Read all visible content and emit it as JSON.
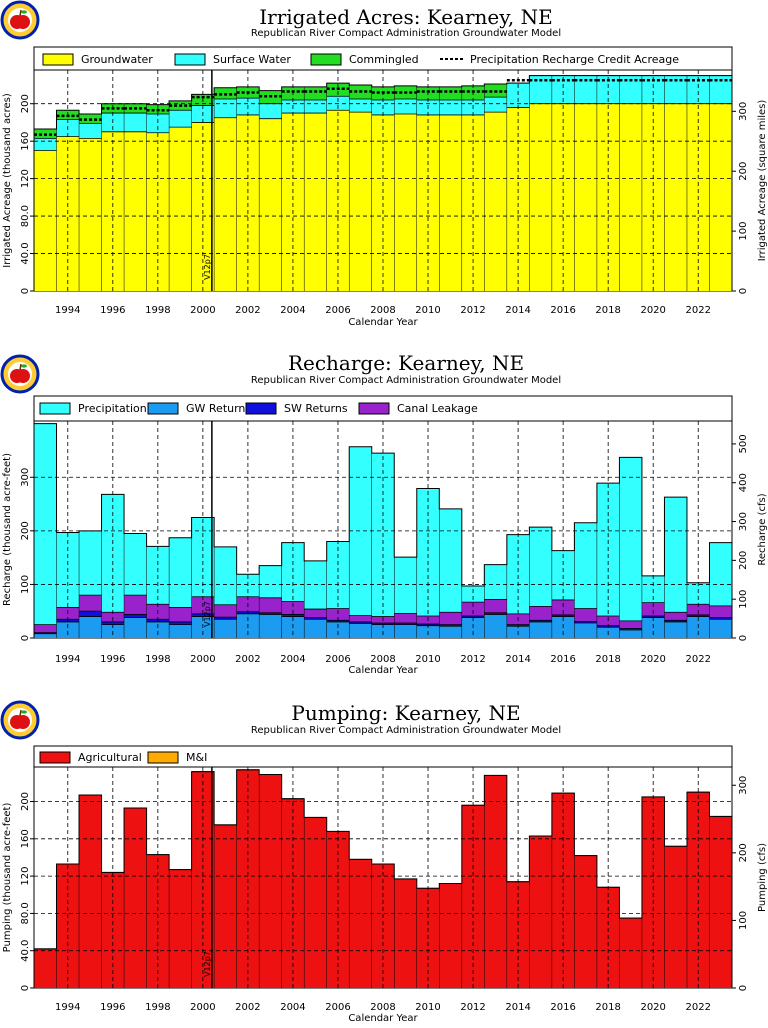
{
  "colors": {
    "groundwater": "#ffff00",
    "surface_water": "#33ffff",
    "commingled": "#22dd22",
    "precipitation": "#33ffff",
    "gw_returns": "#1c9cf0",
    "sw_returns": "#1010dd",
    "canal_leakage": "#9922cc",
    "agricultural": "#ee1111",
    "mi": "#ffaa00"
  },
  "chart_data": [
    {
      "type": "area",
      "title": "Irrigated Acres: Kearney, NE",
      "subtitle": "Republican River Compact Administration Groundwater Model",
      "xlabel": "Calendar Year",
      "ylabel": "Irrigated Acreage (thousand acres)",
      "ylabel_right": "Irrigated Acreage (square miles)",
      "x": [
        1993,
        1994,
        1995,
        1996,
        1997,
        1998,
        1999,
        2000,
        2001,
        2002,
        2003,
        2004,
        2005,
        2006,
        2007,
        2008,
        2009,
        2010,
        2011,
        2012,
        2013,
        2014,
        2015,
        2016,
        2017,
        2018,
        2019,
        2020,
        2021,
        2022,
        2023
      ],
      "xticks": [
        "1994",
        "1996",
        "1998",
        "2000",
        "2002",
        "2004",
        "2006",
        "2008",
        "2010",
        "2012",
        "2014",
        "2016",
        "2018",
        "2020",
        "2022"
      ],
      "yticks": [
        "0",
        "40.0",
        "80.0",
        "120",
        "160",
        "200"
      ],
      "yticks_right": [
        "0",
        "100",
        "200",
        "300"
      ],
      "ylim": [
        0,
        236
      ],
      "ylim_right": [
        0,
        369
      ],
      "legend": [
        "Groundwater",
        "Surface Water",
        "Commingled",
        "Precipitation Recharge Credit Acreage"
      ],
      "annotation": "V12p7",
      "series": [
        {
          "name": "Groundwater",
          "values": [
            150,
            165,
            163,
            170,
            170,
            169,
            175,
            180,
            185,
            188,
            184,
            190,
            190,
            193,
            191,
            188,
            189,
            188,
            188,
            188,
            191,
            196,
            200,
            200,
            200,
            200,
            200,
            200,
            200,
            200,
            200
          ]
        },
        {
          "name": "Surface Water",
          "values": [
            13,
            18,
            16,
            20,
            20,
            20,
            18,
            18,
            20,
            18,
            16,
            14,
            14,
            15,
            14,
            16,
            16,
            16,
            16,
            16,
            16,
            26,
            30,
            30,
            30,
            30,
            30,
            30,
            30,
            30,
            30
          ]
        },
        {
          "name": "Commingled",
          "values": [
            10,
            10,
            10,
            10,
            10,
            10,
            10,
            12,
            12,
            12,
            14,
            14,
            14,
            14,
            15,
            14,
            14,
            14,
            14,
            15,
            14,
            0,
            0,
            0,
            0,
            0,
            0,
            0,
            0,
            0,
            0
          ]
        },
        {
          "name": "Precipitation Recharge Credit Acreage",
          "values": [
            167,
            187,
            183,
            195,
            195,
            193,
            198,
            207,
            210,
            212,
            208,
            213,
            213,
            216,
            213,
            212,
            212,
            213,
            213,
            213,
            213,
            225,
            225,
            225,
            225,
            225,
            225,
            225,
            225,
            225,
            225
          ]
        }
      ]
    },
    {
      "type": "area",
      "title": "Recharge: Kearney, NE",
      "subtitle": "Republican River Compact Administration Groundwater Model",
      "xlabel": "Calendar Year",
      "ylabel": "Recharge (thousand acre-feet)",
      "ylabel_right": "Recharge (cfs)",
      "x": [
        1993,
        1994,
        1995,
        1996,
        1997,
        1998,
        1999,
        2000,
        2001,
        2002,
        2003,
        2004,
        2005,
        2006,
        2007,
        2008,
        2009,
        2010,
        2011,
        2012,
        2013,
        2014,
        2015,
        2016,
        2017,
        2018,
        2019,
        2020,
        2021,
        2022,
        2023
      ],
      "xticks": [
        "1994",
        "1996",
        "1998",
        "2000",
        "2002",
        "2004",
        "2006",
        "2008",
        "2010",
        "2012",
        "2014",
        "2016",
        "2018",
        "2020",
        "2022"
      ],
      "yticks": [
        "0",
        "100",
        "200",
        "300"
      ],
      "yticks_right": [
        "0",
        "100",
        "200",
        "300",
        "400",
        "500"
      ],
      "ylim": [
        0,
        405
      ],
      "ylim_right": [
        0,
        559
      ],
      "legend": [
        "Precipitation",
        "GW Returns",
        "SW Returns",
        "Canal Leakage"
      ],
      "annotation": "V12p7",
      "series": [
        {
          "name": "GW Returns",
          "values": [
            8,
            30,
            40,
            25,
            38,
            30,
            25,
            40,
            35,
            45,
            44,
            40,
            35,
            30,
            27,
            25,
            25,
            23,
            22,
            38,
            44,
            22,
            30,
            40,
            28,
            20,
            15,
            38,
            30,
            40,
            35
          ]
        },
        {
          "name": "SW Returns",
          "values": [
            2,
            5,
            10,
            5,
            6,
            5,
            5,
            5,
            4,
            4,
            3,
            4,
            3,
            3,
            3,
            3,
            3,
            3,
            3,
            3,
            3,
            3,
            3,
            3,
            3,
            3,
            3,
            3,
            3,
            3,
            3
          ]
        },
        {
          "name": "Canal Leakage",
          "values": [
            15,
            22,
            30,
            18,
            36,
            28,
            27,
            32,
            23,
            28,
            28,
            24,
            16,
            22,
            12,
            12,
            18,
            15,
            23,
            26,
            25,
            20,
            26,
            28,
            24,
            18,
            14,
            25,
            15,
            20,
            22
          ]
        },
        {
          "name": "Precipitation",
          "values": [
            375,
            140,
            120,
            220,
            115,
            108,
            130,
            148,
            108,
            42,
            60,
            110,
            90,
            125,
            315,
            305,
            105,
            238,
            193,
            30,
            65,
            148,
            148,
            92,
            160,
            248,
            305,
            50,
            215,
            40,
            118
          ]
        }
      ]
    },
    {
      "type": "bar",
      "title": "Pumping: Kearney, NE",
      "subtitle": "Republican River Compact Administration Groundwater Model",
      "xlabel": "Calendar Year",
      "ylabel": "Pumping (thousand acre-feet)",
      "ylabel_right": "Pumping (cfs)",
      "x": [
        1993,
        1994,
        1995,
        1996,
        1997,
        1998,
        1999,
        2000,
        2001,
        2002,
        2003,
        2004,
        2005,
        2006,
        2007,
        2008,
        2009,
        2010,
        2011,
        2012,
        2013,
        2014,
        2015,
        2016,
        2017,
        2018,
        2019,
        2020,
        2021,
        2022,
        2023
      ],
      "xticks": [
        "1994",
        "1996",
        "1998",
        "2000",
        "2002",
        "2004",
        "2006",
        "2008",
        "2010",
        "2012",
        "2014",
        "2016",
        "2018",
        "2020",
        "2022"
      ],
      "yticks": [
        "0",
        "40.0",
        "80.0",
        "120",
        "160",
        "200"
      ],
      "yticks_right": [
        "0",
        "100",
        "200",
        "300"
      ],
      "ylim": [
        0,
        237
      ],
      "ylim_right": [
        0,
        327
      ],
      "legend": [
        "Agricultural",
        "M&I"
      ],
      "annotation": "V12p7",
      "series": [
        {
          "name": "Agricultural",
          "values": [
            42,
            133,
            207,
            124,
            193,
            143,
            127,
            232,
            175,
            234,
            229,
            203,
            183,
            168,
            138,
            133,
            117,
            107,
            112,
            196,
            228,
            114,
            163,
            209,
            142,
            108,
            75,
            205,
            152,
            210,
            184
          ]
        },
        {
          "name": "M&I",
          "values": [
            0,
            0,
            0,
            0,
            0,
            0,
            0,
            0,
            0,
            0,
            0,
            0,
            0,
            0,
            0,
            0,
            0,
            0,
            0,
            0,
            0,
            0,
            0,
            0,
            0,
            0,
            0,
            0,
            0,
            0,
            0
          ]
        }
      ]
    }
  ]
}
